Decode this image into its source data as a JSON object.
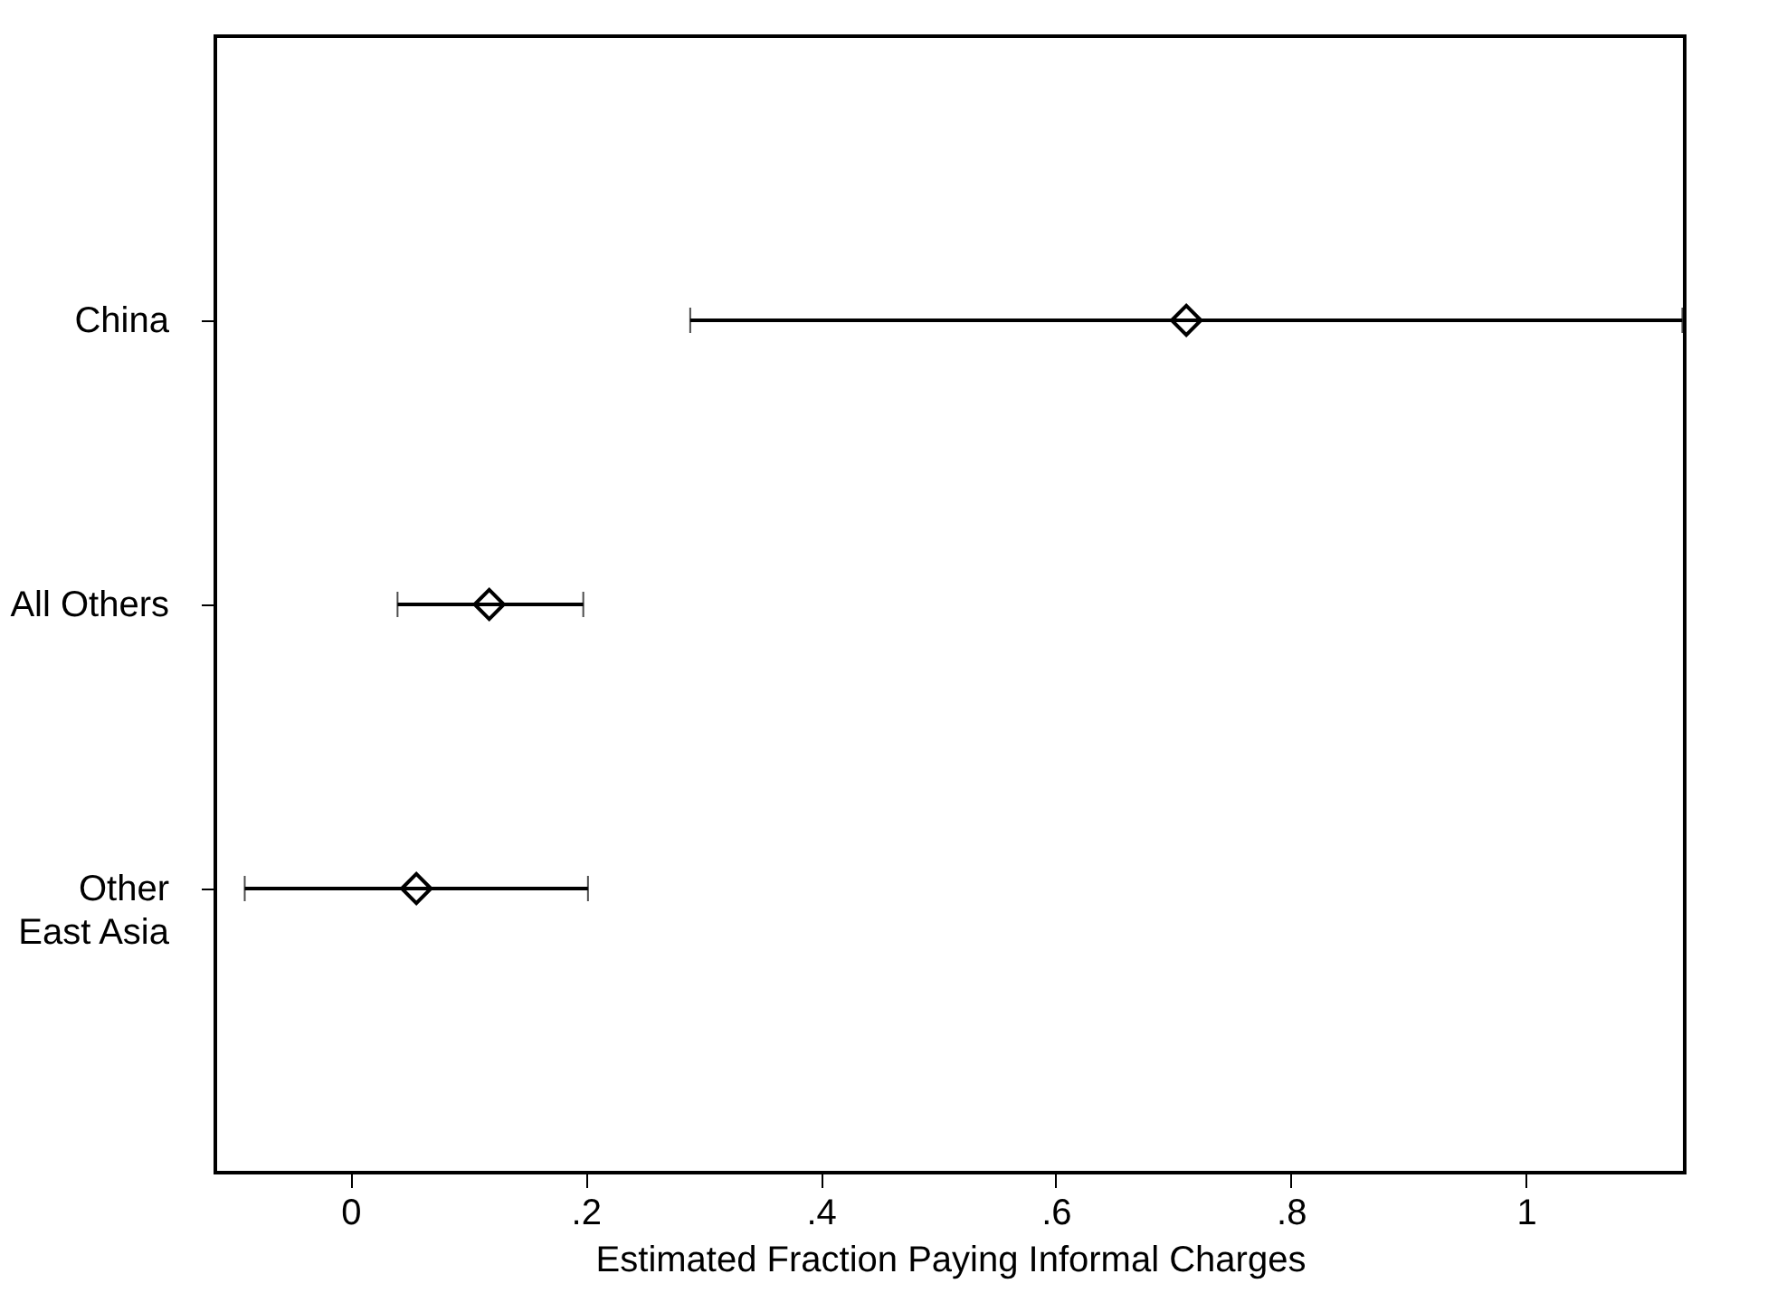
{
  "chart_data": {
    "type": "scatter",
    "orientation": "horizontal",
    "xlabel": "Estimated Fraction Paying Informal Charges",
    "categories": [
      "China",
      "All Others",
      "Other East Asia"
    ],
    "series": [
      {
        "color": "#000000",
        "values": [
          0.711,
          0.118,
          0.056
        ],
        "errors": [
          [
            0.289,
            1.133
          ],
          [
            0.04,
            0.198
          ],
          [
            -0.09,
            0.202
          ]
        ]
      }
    ],
    "marker": "diamond",
    "grid": false,
    "xlim": [
      -0.115,
      1.135
    ],
    "xticks": [
      0,
      {
        "value": 0.2,
        "label": ".2"
      },
      {
        "value": 0.4,
        "label": ".4"
      },
      {
        "value": 0.6,
        "label": ".6"
      },
      {
        "value": 0.8,
        "label": ".8"
      },
      1
    ]
  }
}
